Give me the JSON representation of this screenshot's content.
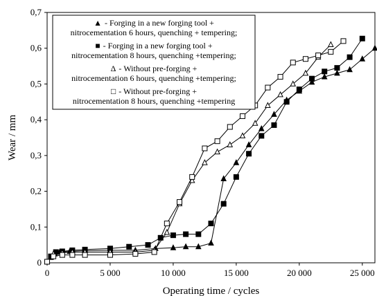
{
  "chart_data": {
    "type": "line",
    "xlabel": "Operating time / cycles",
    "ylabel": "Wear / mm",
    "xlim": [
      0,
      26000
    ],
    "ylim": [
      0,
      0.7
    ],
    "x_ticks": [
      0,
      5000,
      10000,
      15000,
      20000,
      25000
    ],
    "x_tick_labels": [
      "0",
      "5 000",
      "10 000",
      "15 000",
      "20 000",
      "25 000"
    ],
    "y_ticks": [
      0,
      0.1,
      0.2,
      0.3,
      0.4,
      0.5,
      0.6,
      0.7
    ],
    "y_tick_labels": [
      "0",
      "0,1",
      "0,2",
      "0,3",
      "0,4",
      "0,5",
      "0,6",
      "0,7"
    ],
    "grid": false,
    "legend_position": "top-left",
    "series": [
      {
        "legend_symbol": "▲",
        "legend_line1": "- Forging in a new forging tool +",
        "legend_line2": "nitrocementation 6 hours, quenching + tempering;",
        "marker": "triangle",
        "filled": true,
        "x": [
          0,
          300,
          600,
          1000,
          1800,
          3000,
          5000,
          7000,
          8600,
          10000,
          11000,
          12000,
          13000,
          14000,
          15000,
          16000,
          17000,
          18000,
          19000,
          20000,
          21000,
          22000,
          23000,
          24000,
          25000,
          26000
        ],
        "y": [
          0.003,
          0.015,
          0.025,
          0.03,
          0.032,
          0.034,
          0.035,
          0.035,
          0.04,
          0.042,
          0.045,
          0.045,
          0.055,
          0.235,
          0.28,
          0.33,
          0.375,
          0.415,
          0.455,
          0.48,
          0.505,
          0.52,
          0.53,
          0.54,
          0.57,
          0.6
        ]
      },
      {
        "legend_symbol": "■",
        "legend_line1": "- Forging in a new forging tool +",
        "legend_line2": "nitrocementation 8 hours, quenching +tempering;",
        "marker": "square",
        "filled": true,
        "x": [
          0,
          300,
          700,
          1200,
          2000,
          3000,
          5000,
          6500,
          8000,
          9000,
          10000,
          11000,
          12000,
          13000,
          14000,
          15000,
          16000,
          17000,
          18000,
          19000,
          20000,
          21000,
          22000,
          23000,
          24000,
          25000
        ],
        "y": [
          0.003,
          0.018,
          0.03,
          0.032,
          0.035,
          0.037,
          0.04,
          0.045,
          0.05,
          0.07,
          0.077,
          0.08,
          0.08,
          0.11,
          0.165,
          0.24,
          0.305,
          0.355,
          0.385,
          0.45,
          0.485,
          0.515,
          0.535,
          0.545,
          0.575,
          0.627
        ]
      },
      {
        "legend_symbol": "Δ",
        "legend_line1": "- Without pre-forging +",
        "legend_line2": "nitrocementation 6 hours, quenching +tempering;",
        "marker": "triangle",
        "filled": false,
        "x": [
          0,
          500,
          1200,
          2000,
          3000,
          5000,
          7000,
          8500,
          9500,
          10500,
          11500,
          12500,
          13500,
          14500,
          15500,
          16500,
          17500,
          18500,
          19500,
          20500,
          21500,
          22500
        ],
        "y": [
          0.003,
          0.025,
          0.028,
          0.03,
          0.03,
          0.03,
          0.03,
          0.035,
          0.085,
          0.165,
          0.23,
          0.28,
          0.31,
          0.33,
          0.355,
          0.39,
          0.44,
          0.47,
          0.5,
          0.53,
          0.575,
          0.61
        ]
      },
      {
        "legend_symbol": "□",
        "legend_line1": "- Without pre-forging +",
        "legend_line2": "nitrocementation 8 hours, quenching +tempering",
        "marker": "square",
        "filled": false,
        "x": [
          0,
          500,
          1200,
          2000,
          3000,
          5000,
          7000,
          8500,
          9500,
          10500,
          11500,
          12500,
          13500,
          14500,
          15500,
          16500,
          17500,
          18500,
          19500,
          20500,
          21500,
          22500,
          23500
        ],
        "y": [
          0.003,
          0.018,
          0.022,
          0.022,
          0.022,
          0.022,
          0.025,
          0.03,
          0.11,
          0.17,
          0.24,
          0.32,
          0.34,
          0.38,
          0.41,
          0.44,
          0.49,
          0.52,
          0.56,
          0.57,
          0.58,
          0.59,
          0.62
        ]
      }
    ]
  }
}
